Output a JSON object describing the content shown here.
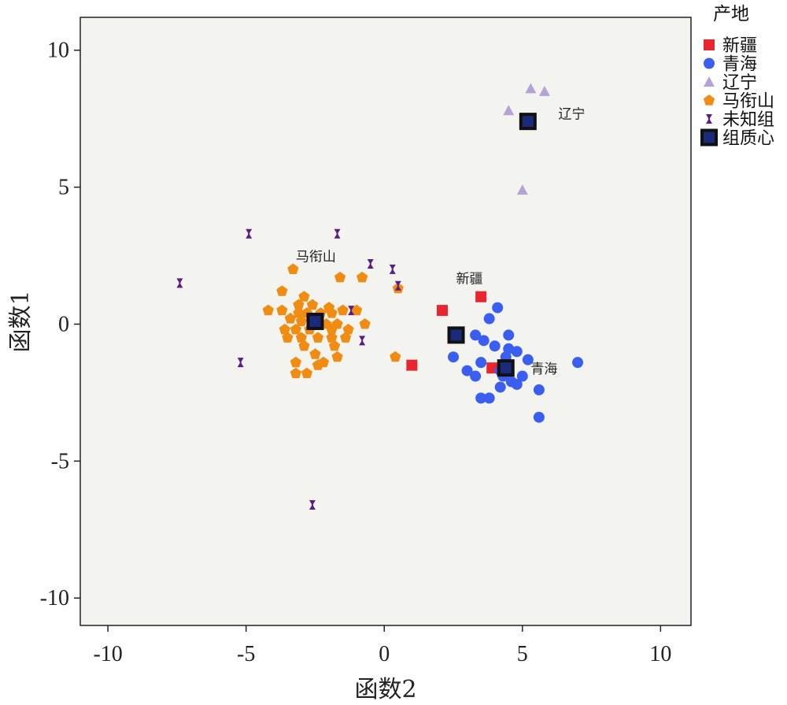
{
  "chart_data": {
    "type": "scatter",
    "xlabel": "函数2",
    "ylabel": "函数1",
    "xlim": [
      -11,
      11.1
    ],
    "ylim": [
      -11,
      11.2
    ],
    "xticks": [
      -10,
      -5,
      0,
      5,
      10
    ],
    "yticks": [
      -10,
      -5,
      0,
      5,
      10
    ],
    "grid": false,
    "legend": {
      "title": "产地",
      "position": "top-right",
      "entries": [
        "新疆",
        "青海",
        "辽宁",
        "马衔山",
        "未知组",
        "组质心"
      ]
    },
    "colors": {
      "新疆": "#e8262f",
      "青海": "#3a5ff0",
      "辽宁": "#b7a3d3",
      "马衔山": "#f08c12",
      "未知组": "#5b1c86",
      "组质心": "#1b2a7a",
      "plot_bg": "#f3f3ef"
    },
    "series": [
      {
        "name": "新疆",
        "marker": "square",
        "points": [
          [
            2.1,
            0.5
          ],
          [
            3.5,
            1.0
          ],
          [
            1.0,
            -1.5
          ],
          [
            3.9,
            -1.6
          ]
        ]
      },
      {
        "name": "青海",
        "marker": "circle",
        "points": [
          [
            4.1,
            0.6
          ],
          [
            3.8,
            0.2
          ],
          [
            4.5,
            -0.4
          ],
          [
            3.6,
            -0.6
          ],
          [
            3.3,
            -0.4
          ],
          [
            4.0,
            -0.8
          ],
          [
            4.5,
            -0.9
          ],
          [
            4.8,
            -1.0
          ],
          [
            4.4,
            -1.2
          ],
          [
            5.2,
            -1.3
          ],
          [
            3.5,
            -1.4
          ],
          [
            4.2,
            -1.7
          ],
          [
            2.5,
            -1.2
          ],
          [
            3.0,
            -1.7
          ],
          [
            3.3,
            -1.9
          ],
          [
            4.3,
            -1.9
          ],
          [
            4.6,
            -2.1
          ],
          [
            5.0,
            -1.9
          ],
          [
            4.8,
            -2.2
          ],
          [
            4.2,
            -2.3
          ],
          [
            5.6,
            -2.4
          ],
          [
            3.5,
            -2.7
          ],
          [
            3.8,
            -2.7
          ],
          [
            5.6,
            -3.4
          ],
          [
            7.0,
            -1.4
          ]
        ]
      },
      {
        "name": "辽宁",
        "marker": "triangle",
        "points": [
          [
            5.3,
            8.6
          ],
          [
            5.8,
            8.5
          ],
          [
            4.5,
            7.8
          ],
          [
            5.0,
            4.9
          ]
        ]
      },
      {
        "name": "马衔山",
        "marker": "pentagon",
        "points": [
          [
            -3.3,
            2.0
          ],
          [
            -1.6,
            1.7
          ],
          [
            -0.8,
            1.7
          ],
          [
            -3.7,
            1.2
          ],
          [
            -2.9,
            1.0
          ],
          [
            -3.1,
            0.7
          ],
          [
            -2.6,
            0.7
          ],
          [
            -2.0,
            0.6
          ],
          [
            -1.0,
            0.5
          ],
          [
            -4.2,
            0.5
          ],
          [
            -3.7,
            0.5
          ],
          [
            -3.1,
            0.4
          ],
          [
            -2.8,
            0.4
          ],
          [
            -2.3,
            0.4
          ],
          [
            -1.9,
            0.4
          ],
          [
            -1.5,
            0.5
          ],
          [
            -3.4,
            0.2
          ],
          [
            -3.0,
            0.1
          ],
          [
            -2.1,
            0.0
          ],
          [
            -1.7,
            0.0
          ],
          [
            -0.7,
            0.0
          ],
          [
            -3.6,
            -0.2
          ],
          [
            -3.2,
            -0.2
          ],
          [
            -2.7,
            -0.2
          ],
          [
            -1.9,
            -0.2
          ],
          [
            -1.3,
            -0.2
          ],
          [
            -3.5,
            -0.5
          ],
          [
            -3.0,
            -0.5
          ],
          [
            -2.4,
            -0.5
          ],
          [
            -1.9,
            -0.5
          ],
          [
            -1.4,
            -0.5
          ],
          [
            -2.9,
            -0.8
          ],
          [
            -1.8,
            -0.8
          ],
          [
            -2.5,
            -1.1
          ],
          [
            -3.2,
            -1.4
          ],
          [
            -2.2,
            -1.4
          ],
          [
            -1.7,
            -1.2
          ],
          [
            -2.4,
            -1.5
          ],
          [
            -3.2,
            -1.8
          ],
          [
            -2.8,
            -1.8
          ],
          [
            0.4,
            -1.2
          ],
          [
            0.5,
            1.3
          ]
        ]
      },
      {
        "name": "未知组",
        "marker": "hourglass",
        "points": [
          [
            -4.9,
            3.3
          ],
          [
            -1.7,
            3.3
          ],
          [
            -0.5,
            2.2
          ],
          [
            0.3,
            2.0
          ],
          [
            -7.4,
            1.5
          ],
          [
            0.5,
            1.4
          ],
          [
            -1.2,
            0.5
          ],
          [
            -0.8,
            -0.6
          ],
          [
            -5.2,
            -1.4
          ],
          [
            -2.6,
            -6.6
          ]
        ]
      },
      {
        "name": "组质心",
        "marker": "centroid",
        "points": [
          [
            -2.5,
            0.1
          ],
          [
            2.6,
            -0.4
          ],
          [
            4.4,
            -1.6
          ],
          [
            5.2,
            7.4
          ]
        ]
      }
    ],
    "annotations": [
      {
        "text": "马衔山",
        "x": -3.2,
        "y": 2.3
      },
      {
        "text": "新疆",
        "x": 2.6,
        "y": 1.5
      },
      {
        "text": "青海",
        "x": 5.3,
        "y": -1.8
      },
      {
        "text": "辽宁",
        "x": 6.3,
        "y": 7.5
      }
    ]
  }
}
